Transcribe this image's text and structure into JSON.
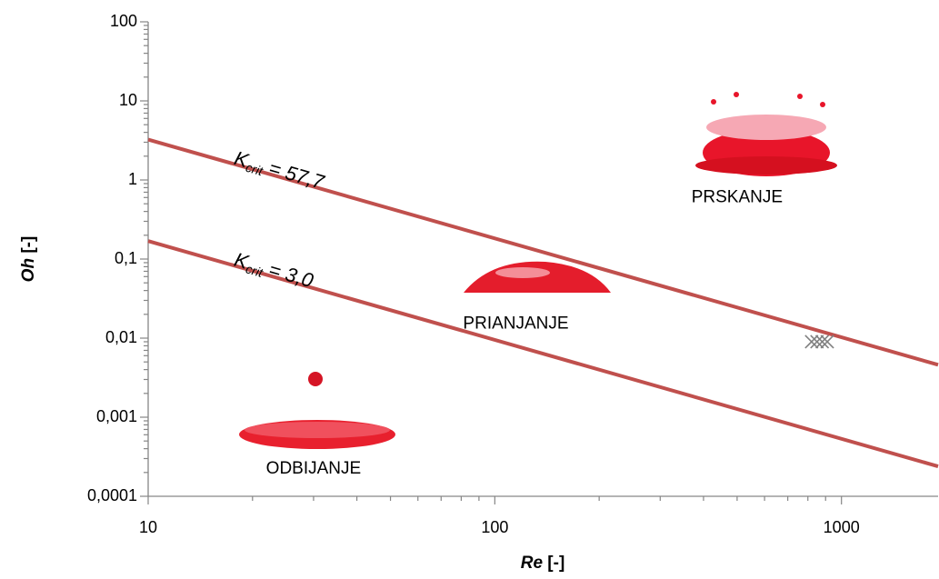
{
  "chart_data": {
    "type": "scatter",
    "log_x": true,
    "log_y": true,
    "xlim": [
      10,
      1900
    ],
    "ylim": [
      0.0001,
      100
    ],
    "xticks": [
      10,
      100,
      1000
    ],
    "yticks": [
      100,
      10,
      1,
      {
        "value": 0.1,
        "label": "0,1"
      },
      {
        "value": 0.01,
        "label": "0,01"
      },
      {
        "value": 0.001,
        "label": "0,001"
      },
      {
        "value": 0.0001,
        "label": "0,0001"
      }
    ],
    "x_label": {
      "var": "Re",
      "unit": "[-]"
    },
    "y_label": {
      "var": "Oh",
      "unit": "[-]"
    },
    "series": [
      {
        "kind": "line",
        "color": "#c0504d",
        "x": [
          10,
          1900
        ],
        "values": [
          3.245,
          0.0046
        ],
        "label": {
          "base": "K",
          "sub": "crit",
          "rest": " = 57,7"
        }
      },
      {
        "kind": "line",
        "color": "#c0504d",
        "x": [
          10,
          1900
        ],
        "values": [
          0.169,
          0.000239
        ],
        "label": {
          "base": "K",
          "sub": "crit",
          "rest": " = 3,0"
        }
      },
      {
        "kind": "points",
        "color": "#808080",
        "x": [
          820,
          850,
          880,
          910
        ],
        "values": [
          0.009,
          0.009,
          0.009,
          0.009
        ]
      }
    ],
    "regions": [
      {
        "text": "PRSKANJE",
        "x": 500,
        "y": 0.6
      },
      {
        "text": "PRIANJANJE",
        "x": 115,
        "y": 0.015
      },
      {
        "text": "ODBIJANJE",
        "x": 30,
        "y": 0.00022
      }
    ]
  }
}
